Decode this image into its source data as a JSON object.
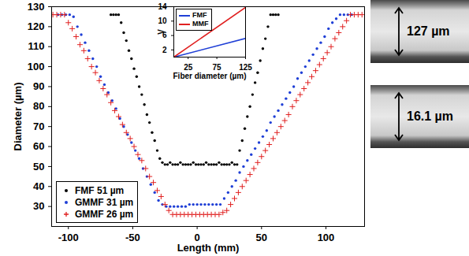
{
  "chart_data": [
    {
      "type": "scatter",
      "xlabel": "Length (mm)",
      "ylabel": "Diameter (µm)",
      "xlim": [
        -113,
        130
      ],
      "ylim": [
        20,
        130
      ],
      "xticks": [
        -100,
        -50,
        0,
        50,
        100
      ],
      "yticks": [
        30,
        40,
        50,
        60,
        70,
        80,
        90,
        100,
        110,
        120,
        130
      ],
      "grid": false,
      "legend": "lower left",
      "series": [
        {
          "name": "FMF 51 µm",
          "color": "#000000",
          "marker": "dot",
          "x": [
            -67,
            -65,
            -63,
            -61,
            -59,
            -57,
            -55,
            -53,
            -51,
            -49,
            -47,
            -45,
            -43,
            -41,
            -39,
            -37,
            -35,
            -33,
            -31,
            -29,
            -27,
            -25,
            -23,
            -21,
            -19,
            -17,
            -15,
            -13,
            -11,
            -9,
            -7,
            -5,
            -3,
            -1,
            1,
            3,
            5,
            7,
            9,
            11,
            13,
            15,
            17,
            19,
            21,
            23,
            25,
            27,
            29,
            31,
            33,
            35,
            37,
            39,
            41,
            43,
            45,
            47,
            49,
            51,
            53,
            55,
            57,
            59,
            61,
            63
          ],
          "values": [
            126,
            126,
            126,
            126,
            122,
            117,
            113,
            108,
            104,
            99,
            95,
            90,
            86,
            81,
            76,
            72,
            67,
            63,
            58,
            54,
            52,
            51,
            51,
            52,
            51,
            51,
            51,
            52,
            51,
            51,
            51,
            51,
            52,
            51,
            51,
            51,
            51,
            52,
            51,
            51,
            51,
            51,
            52,
            51,
            51,
            51,
            51,
            52,
            51,
            51,
            58,
            63,
            69,
            75,
            80,
            86,
            92,
            97,
            103,
            109,
            114,
            120,
            126,
            126,
            126,
            126
          ]
        },
        {
          "name": "GMMF 31 µm",
          "color": "#1f3fd6",
          "marker": "dot",
          "x": [
            -108,
            -105,
            -102,
            -99,
            -96,
            -93,
            -90,
            -87,
            -84,
            -81,
            -78,
            -75,
            -72,
            -69,
            -66,
            -63,
            -60,
            -57,
            -54,
            -51,
            -48,
            -45,
            -42,
            -39,
            -36,
            -33,
            -30,
            -27,
            -24,
            -21,
            -18,
            -15,
            -12,
            -9,
            -6,
            -3,
            0,
            3,
            6,
            9,
            12,
            15,
            18,
            21,
            24,
            27,
            30,
            33,
            36,
            39,
            42,
            45,
            48,
            51,
            54,
            57,
            60,
            63,
            66,
            69,
            72,
            75,
            78,
            81,
            84,
            87,
            90,
            93,
            96,
            99,
            102,
            105,
            108,
            111,
            114,
            117,
            120
          ],
          "values": [
            126,
            126,
            126,
            126,
            125,
            120,
            116,
            112,
            108,
            104,
            100,
            95,
            91,
            87,
            83,
            79,
            74,
            70,
            66,
            62,
            58,
            54,
            49,
            45,
            41,
            37,
            33,
            31,
            30,
            30,
            30,
            30,
            30,
            30,
            31,
            31,
            31,
            31,
            31,
            31,
            31,
            31,
            31,
            34,
            37,
            40,
            43,
            47,
            50,
            53,
            56,
            59,
            62,
            65,
            68,
            72,
            75,
            78,
            81,
            84,
            87,
            90,
            94,
            97,
            100,
            103,
            106,
            109,
            112,
            115,
            119,
            122,
            124,
            126,
            126,
            126,
            126
          ]
        },
        {
          "name": "GMMF 26 µm",
          "color": "#e02020",
          "marker": "plus",
          "x": [
            -112,
            -109,
            -106,
            -103,
            -100,
            -97,
            -94,
            -91,
            -88,
            -85,
            -82,
            -79,
            -76,
            -73,
            -70,
            -67,
            -64,
            -61,
            -58,
            -55,
            -52,
            -49,
            -46,
            -43,
            -40,
            -37,
            -34,
            -31,
            -28,
            -25,
            -22,
            -19,
            -16,
            -13,
            -10,
            -7,
            -4,
            -1,
            2,
            5,
            8,
            11,
            14,
            17,
            20,
            23,
            26,
            29,
            32,
            35,
            38,
            41,
            44,
            47,
            50,
            53,
            56,
            59,
            62,
            65,
            68,
            71,
            74,
            77,
            80,
            83,
            86,
            89,
            92,
            95,
            98,
            101,
            104,
            107,
            110,
            113,
            116,
            119,
            122,
            125,
            128
          ],
          "values": [
            126,
            126,
            126,
            126,
            122,
            119,
            115,
            111,
            108,
            104,
            100,
            97,
            93,
            89,
            86,
            82,
            78,
            75,
            71,
            67,
            64,
            60,
            56,
            53,
            49,
            45,
            42,
            38,
            35,
            31,
            28,
            26,
            26,
            26,
            26,
            26,
            26,
            26,
            26,
            26,
            26,
            26,
            26,
            26,
            27,
            28,
            31,
            34,
            37,
            40,
            43,
            46,
            49,
            52,
            55,
            58,
            61,
            64,
            67,
            70,
            73,
            76,
            80,
            83,
            86,
            89,
            92,
            95,
            98,
            101,
            104,
            107,
            110,
            114,
            117,
            120,
            123,
            126,
            126,
            126,
            126
          ]
        }
      ]
    },
    {
      "type": "line",
      "xlabel": "Fiber diameter (µm)",
      "ylabel": "V",
      "xlim": [
        0,
        125
      ],
      "ylim": [
        0,
        14
      ],
      "xticks": [
        25,
        75,
        125
      ],
      "yticks": [
        2,
        6,
        10,
        14
      ],
      "grid": false,
      "legend": "upper left",
      "x": [
        0,
        125
      ],
      "series": [
        {
          "name": "FMF",
          "color": "#1f3fd6",
          "values": [
            0,
            5.2
          ]
        },
        {
          "name": "MMF",
          "color": "#e02020",
          "values": [
            0,
            13.8
          ]
        }
      ]
    }
  ],
  "images": [
    {
      "label": "127 µm"
    },
    {
      "label": "16.1 µm"
    }
  ]
}
